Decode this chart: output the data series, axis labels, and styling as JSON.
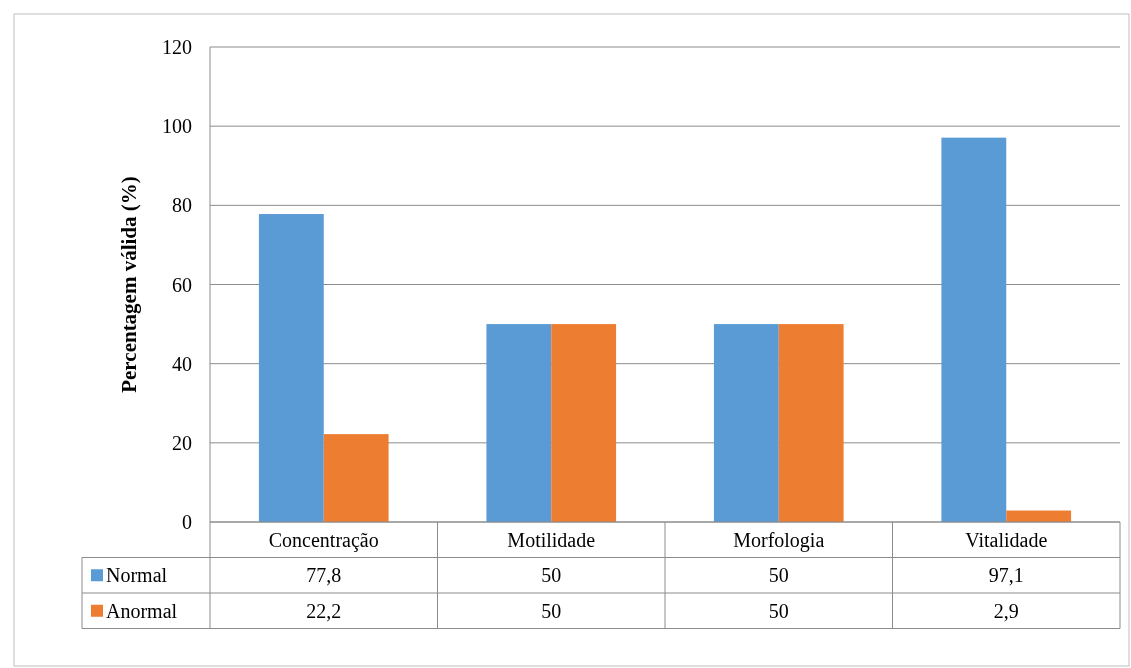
{
  "chart_data": {
    "type": "bar",
    "ylabel": "Percentagem válida (%)",
    "categories": [
      "Concentração",
      "Motilidade",
      "Morfologia",
      "Vitalidade"
    ],
    "series": [
      {
        "name": "Normal",
        "color": "#5b9bd5",
        "values": [
          77.8,
          50,
          50,
          97.1
        ],
        "value_labels": [
          "77,8",
          "50",
          "50",
          "97,1"
        ]
      },
      {
        "name": "Anormal",
        "color": "#ed7d31",
        "values": [
          22.2,
          50,
          50,
          2.9
        ],
        "value_labels": [
          "22,2",
          "50",
          "50",
          "2,9"
        ]
      }
    ],
    "ylim": [
      0,
      120
    ],
    "yticks": [
      0,
      20,
      40,
      60,
      80,
      100,
      120
    ],
    "grid": "y",
    "legend": "bottom"
  }
}
